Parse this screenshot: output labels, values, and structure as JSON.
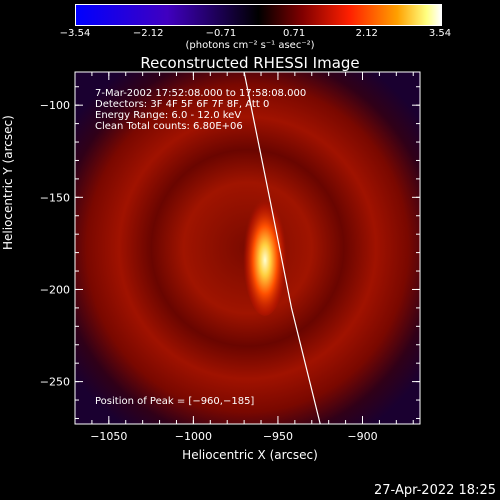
{
  "timestamp": "27-Apr-2022 18:25",
  "colorbar": {
    "ticks": [
      "−3.54",
      "−2.12",
      "−0.71",
      "0.71",
      "2.12",
      "3.54"
    ],
    "tick_values": [
      -3.54,
      -2.12,
      -0.71,
      0.71,
      2.12,
      3.54
    ],
    "unit": "(photons cm⁻² s⁻¹ asec⁻²)"
  },
  "chart_data": {
    "type": "heatmap",
    "title": "Reconstructed RHESSI Image",
    "xlabel": "Heliocentric X (arcsec)",
    "ylabel": "Heliocentric Y (arcsec)",
    "xlim": [
      -1070,
      -866
    ],
    "ylim": [
      -273,
      -82
    ],
    "xticks": [
      -1050,
      -1000,
      -950,
      -900
    ],
    "xtick_labels": [
      "−1050",
      "−1000",
      "−950",
      "−900"
    ],
    "yticks": [
      -100,
      -150,
      -200,
      -250
    ],
    "ytick_labels": [
      "−100",
      "−150",
      "−200",
      "−250"
    ],
    "annotations": [
      "7-Mar-2002 17:52:08.000 to 17:58:08.000",
      "Detectors: 3F 4F 5F 6F 7F 8F, Att 0",
      "Energy Range: 6.0 - 12.0 keV",
      "Clean     Total counts: 6.80E+06"
    ],
    "peak_label": "Position of Peak = [−960,−185]",
    "peak": [
      -960,
      -185
    ],
    "limb_curve": [
      [
        -970,
        -82
      ],
      [
        -955,
        -150
      ],
      [
        -942,
        -210
      ],
      [
        -925,
        -273
      ]
    ]
  }
}
